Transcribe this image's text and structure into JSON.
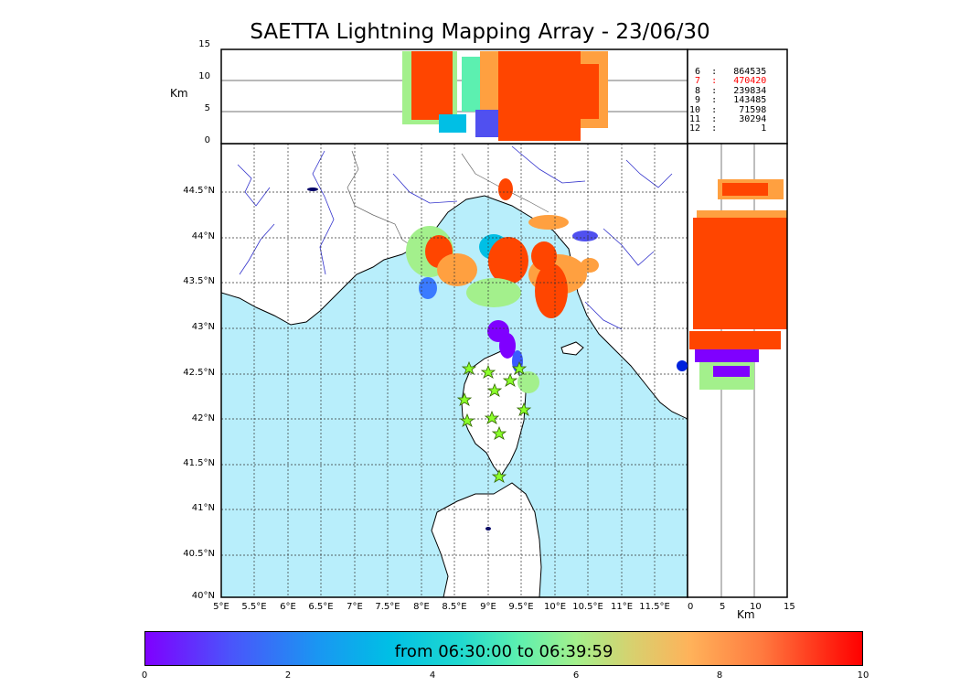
{
  "title": "SAETTA Lightning Mapping Array - 23/06/30",
  "altitude_axis": {
    "label": "Km",
    "ticks": [
      "15",
      "10",
      "5",
      "0"
    ]
  },
  "latitude_ticks": [
    "44.5°N",
    "44°N",
    "43.5°N",
    "43°N",
    "42.5°N",
    "42°N",
    "41.5°N",
    "41°N",
    "40.5°N",
    "40°N"
  ],
  "longitude_ticks": [
    "5°E",
    "5.5°E",
    "6°E",
    "6.5°E",
    "7°E",
    "7.5°E",
    "8°E",
    "8.5°E",
    "9°E",
    "9.5°E",
    "10°E",
    "10.5°E",
    "11°E",
    "11.5°E"
  ],
  "side_panel_axis": {
    "label": "Km",
    "ticks": [
      "0",
      "5",
      "10",
      "15"
    ]
  },
  "station_counts": [
    {
      "stations": "6",
      "count": "864535",
      "color": "#000000"
    },
    {
      "stations": "7",
      "count": "470420",
      "color": "#ff0000"
    },
    {
      "stations": "8",
      "count": "239834",
      "color": "#000000"
    },
    {
      "stations": "9",
      "count": "143485",
      "color": "#000000"
    },
    {
      "stations": "10",
      "count": "71598",
      "color": "#000000"
    },
    {
      "stations": "11",
      "count": "30294",
      "color": "#000000"
    },
    {
      "stations": "12",
      "count": "1",
      "color": "#000000"
    }
  ],
  "colorbar": {
    "label": "from 06:30:00 to 06:39:59",
    "ticks": [
      "0",
      "2",
      "4",
      "6",
      "8",
      "10"
    ],
    "range_minutes": [
      0,
      10
    ]
  },
  "colors": {
    "sea": "#b8eefb",
    "grid": "#555555",
    "rivers": "#3333cc",
    "station_marker": "#8aff2a",
    "early": "#7f00ff",
    "late": "#ff4500"
  },
  "map_extent": {
    "lon": [
      5,
      12
    ],
    "lat": [
      40,
      45
    ]
  }
}
